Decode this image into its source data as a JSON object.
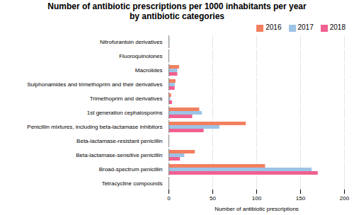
{
  "chart_data": {
    "type": "bar",
    "orientation": "horizontal",
    "title": "Number of antibiotic prescriptions per 1000 inhabitants per year\nby antibiotic categories",
    "xlabel": "Number of antibiotic prescriptions",
    "categories": [
      "Tetracycline compounds",
      "Broad-spectrum penicillin",
      "Beta-lactamase-sensitive penicillin",
      "Beta-lactamase-resistant penicillin",
      "Penicillin mixtures, including beta-lactamase inhibitors",
      "1st generation cephalosporins",
      "Trimethoprim and derivatives",
      "Sulphonamides and trimethoprim and their derivatives",
      "Macrolides",
      "Fluoroquinolones",
      "Nitrofurantoin derivatives"
    ],
    "series": [
      {
        "name": "2016",
        "color": "#F28060",
        "values": [
          0,
          110,
          30,
          0.5,
          88,
          35,
          3,
          8,
          12,
          0.5,
          1
        ]
      },
      {
        "name": "2017",
        "color": "#9DC3E6",
        "values": [
          0,
          163,
          18,
          0.5,
          58,
          38,
          2,
          7,
          10,
          0.5,
          1
        ]
      },
      {
        "name": "2018",
        "color": "#F06090",
        "values": [
          0,
          170,
          13,
          0.5,
          40,
          27,
          4,
          7,
          10,
          0.5,
          1
        ]
      }
    ],
    "xlim": [
      0,
      200
    ],
    "xticks": [
      0,
      50,
      100,
      150,
      200
    ],
    "grid": true,
    "legend": "upper right"
  }
}
